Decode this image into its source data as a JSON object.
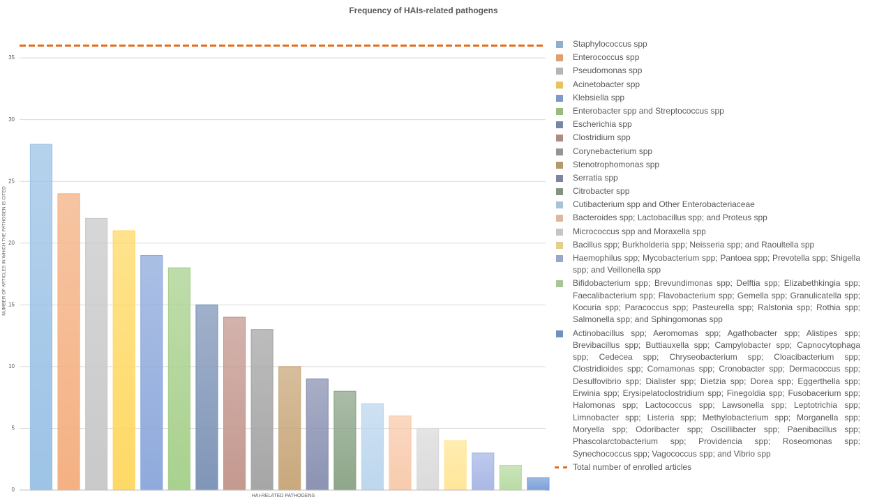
{
  "chart_data": {
    "type": "bar",
    "title": "Frequency of HAIs-related pathogens",
    "y_label": "NUMBER OF ARTICLES IN WHICH THE PATHOGEN IS CITED",
    "x_label": "HAI-RELATED PATHOGENS",
    "categories": [
      "Staphylococcus spp",
      "Enterococcus spp",
      "Pseudomonas spp",
      "Acinetobacter spp",
      "Klebsiella spp",
      "Enterobacter spp and Streptococcus spp",
      "Escherichia spp",
      "Clostridium spp",
      "Corynebacterium spp",
      "Stenotrophomonas spp",
      "Serratia spp",
      "Citrobacter spp",
      "Cutibacterium spp and Other Enterobacteriaceae",
      "Bacteroides spp; Lactobacillus spp; and Proteus spp",
      "Micrococcus spp and Moraxella spp",
      "Bacillus spp; Burkholderia spp; Neisseria spp; and Raoultella spp",
      "Haemophilus spp; Mycobacterium spp; Pantoea spp; Prevotella spp; Shigella spp; and Veillonella spp",
      "Bifidobacterium spp; Brevundimonas spp; Delftia spp; Elizabethkingia spp; Faecalibacterium spp; Flavobacterium spp; Gemella spp; Granulicatella spp; Kocuria spp; Paracoccus spp; Pasteurella spp; Ralstonia spp; Rothia spp; Salmonella spp; and Sphingomonas spp",
      "Actinobacillus spp; Aeromomas spp; Agathobacter spp; Alistipes spp; Brevibacillus spp; Buttiauxella spp; Campylobacter spp; Capnocytophaga spp; Cedecea spp; Chryseobacterium spp; Cloacibacterium spp; Clostridioides spp; Comamonas spp; Cronobacter spp; Dermacoccus spp; Desulfovibrio spp; Dialister spp; Dietzia spp; Dorea spp; Eggerthella spp; Erwinia spp; Erysipelatoclostridium spp; Finegoldia spp; Fusobacerium spp; Halomonas spp; Lactococcus spp; Lawsonella spp; Leptotrichia spp; Limnobacter spp; Listeria spp; Methylobacterium spp; Morganella spp; Moryella spp; Odoribacter spp; Oscillibacter spp; Paenibacillus spp; Phascolarctobacterium spp; Providencia spp; Roseomonas spp; Synechococcus spp; Vagococcus spp; and Vibrio spp"
    ],
    "values": [
      28,
      24,
      22,
      21,
      19,
      18,
      15,
      14,
      13,
      10,
      9,
      8,
      7,
      6,
      5,
      4,
      3,
      2,
      1
    ],
    "colors": [
      "#9dc3e6",
      "#f4b183",
      "#c9c9c9",
      "#ffd966",
      "#8faadc",
      "#a9d18e",
      "#8096b8",
      "#c49990",
      "#a6a6a6",
      "#c9a87c",
      "#8c93b3",
      "#8ea68a",
      "#bdd7ee",
      "#f8cbad",
      "#dbdbdb",
      "#ffe699",
      "#a9b8e6",
      "#b9dca3",
      "#7da0d8"
    ],
    "reference": {
      "value": 36,
      "label": "Total number of enrolled articles",
      "color": "#e46c1a"
    },
    "ylim": [
      0,
      38
    ],
    "yticks": [
      0,
      5,
      10,
      15,
      20,
      25,
      30,
      35
    ],
    "grid": true
  }
}
